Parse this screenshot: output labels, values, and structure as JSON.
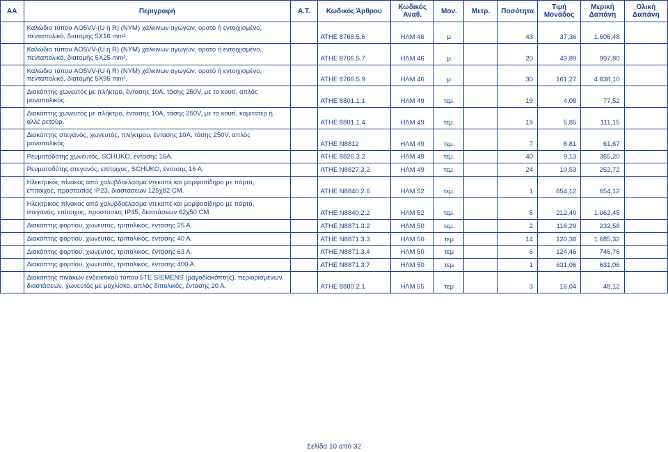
{
  "colors": {
    "text": "#1a3e8c",
    "border": "#1a3e8c",
    "background": "#ffffff"
  },
  "column_widths_pct": [
    3.5,
    40,
    4,
    11,
    6.5,
    4.5,
    5,
    6,
    6.5,
    6.5,
    6.5
  ],
  "headers": [
    "ΑΑ",
    "Περιγραφή",
    "Α.Τ.",
    "Κωδικός Άρθρου",
    "Κωδικός Αναθ.",
    "Μον.",
    "Μετρ.",
    "Ποσότητα",
    "Τιμή Μονάδος",
    "Μερική Δαπάνη",
    "Ολική Δαπάνη"
  ],
  "rows": [
    {
      "desc": "Καλώδιο τύπου AO5VV-(U ή R) (NYM) χάλκινων αγωγών, ορατό ή εντοιχισμένο, πενταπολικό, διατομής 5Χ16 mm².",
      "code": "ΑΤΗΕ 8766.5.6",
      "anath": "ΗΛΜ 46",
      "mon": "μ",
      "qty": "43",
      "price": "37,36",
      "partial": "1.606,48",
      "total": ""
    },
    {
      "desc": "Καλώδιο τύπου AO5VV-(U ή R) (NYM) χάλκινων αγωγών, ορατό ή εντοιχισμένο, πενταπολικό, διατομής 5Χ25 mm².",
      "code": "ΑΤΗΕ 8766.5.7",
      "anath": "ΗΛΜ 46",
      "mon": "μ",
      "qty": "20",
      "price": "49,89",
      "partial": "997,80",
      "total": ""
    },
    {
      "desc": "Καλώδιο τύπου AO5VV-(U ή R) (NYM) χάλκινων αγωγών, ορατό ή εντοιχισμένο, πενταπολικό, διατομής 5Χ95 mm².",
      "code": "ΑΤΗΕ 8766.5.9",
      "anath": "ΗΛΜ 46",
      "mon": "μ",
      "qty": "30",
      "price": "161,27",
      "partial": "4.838,10",
      "total": ""
    },
    {
      "desc": "Διακόπτης χωνευτός με πλήκτρο, έντασης 10Α, τάσης 250V, με το κουτί, απλός μονοπολικός.",
      "code": "ΑΤΗΕ 8801.1.1",
      "anath": "ΗΛΜ 49",
      "mon": "τεμ.",
      "qty": "19",
      "price": "4,08",
      "partial": "77,52",
      "total": ""
    },
    {
      "desc": "Διακόπτης χωνευτός με πλήκτρο, έντασης 10Α, τάσης 250V, με το κουτί, κομιτατέρ ή αλλέ ρετούρ.",
      "code": "ΑΤΗΕ 8801.1.4",
      "anath": "ΗΛΜ 49",
      "mon": "τεμ.",
      "qty": "19",
      "price": "5,85",
      "partial": "111,15",
      "total": ""
    },
    {
      "desc": "Διακόπτης στεγανός, χωνευτός, πλήκτρου, έντασης 10Α, τάσης 250V, απλός μονοπολικός.",
      "code": "ΑΤΗΕ Ν8812",
      "anath": "ΗΛΜ 49",
      "mon": "τεμ.",
      "qty": "7",
      "price": "8,81",
      "partial": "61,67",
      "total": ""
    },
    {
      "desc": "Ρευματοδότης χωνευτός, SCHUKO, έντασης 16Α.",
      "code": "ΑΤΗΕ 8826.3.2",
      "anath": "ΗΛΜ 49",
      "mon": "τεμ.",
      "qty": "40",
      "price": "9,13",
      "partial": "365,20",
      "total": ""
    },
    {
      "desc": "Ρευματοδότης στεγανός, επίτοιχος, SCHUKO, έντασης 16 Α.",
      "code": "ΑΤΗΕ Ν8827.3.2",
      "anath": "ΗΛΜ 49",
      "mon": "τεμ.",
      "qty": "24",
      "price": "10,53",
      "partial": "252,72",
      "total": ""
    },
    {
      "desc": "Ηλεκτρικός πίνακας από χαλυβδοέλασμα ντεκαπέ και μορφοσίδηρο με πόρτα, επίτοιχος, προστασίας ΙΡ23, διαστάσεων 125χ82 CM.",
      "code": "ΑΤΗΕ Ν8840.2.6",
      "anath": "ΗΛΜ 52",
      "mon": "τεμ.",
      "qty": "1",
      "price": "654,12",
      "partial": "654,12",
      "total": ""
    },
    {
      "desc": "Ηλεκτρικός πίνακας από χαλυβδοέλασμα ντεκαπέ και μορφοσίδηρο με πόρτα, στεγανός, επίτοιχος, προστασίας ΙΡ45, διαστάσεων 62χ50 CM.",
      "code": "ΑΤΗΕ Ν8840.2.2",
      "anath": "ΗΛΜ 52",
      "mon": "τεμ.",
      "qty": "5",
      "price": "212,49",
      "partial": "1.062,45",
      "total": ""
    },
    {
      "desc": "Διακόπτης φορτίου, χωνευτός, τριπολικός, έντασης 25 Α.",
      "code": "ΑΤΗΕ Ν8871.3.2",
      "anath": "ΗΛΜ 50",
      "mon": "τεμ.",
      "qty": "2",
      "price": "116,29",
      "partial": "232,58",
      "total": ""
    },
    {
      "desc": "Διακόπτης φορτίου, χωνευτός, τριπολικός, έντασης 40 Α.",
      "code": "ΑΤΗΕ Ν8871.3.3",
      "anath": "ΗΛΜ 50",
      "mon": "τεμ",
      "qty": "14",
      "price": "120,38",
      "partial": "1.685,32",
      "total": ""
    },
    {
      "desc": "Διακόπτης φορτίου, χωνευτός, τριπολικός, έντασης 63 Α.",
      "code": "ΑΤΗΕ Ν8871.3.4",
      "anath": "ΗΛΜ 50",
      "mon": "τεμ",
      "qty": "6",
      "price": "124,46",
      "partial": "746,76",
      "total": ""
    },
    {
      "desc": "Διακόπτης φορτίου, χωνευτός, τριπολικός, έντασης 400 Α.",
      "code": "ΑΤΗΕ Ν8871.3.7",
      "anath": "ΗΛΜ 50",
      "mon": "τεμ",
      "qty": "1",
      "price": "631,06",
      "partial": "631,06",
      "total": ""
    },
    {
      "desc": "Διακόπτης πινάκων ενδεικτικού τύπου 5ΤΕ SIEMENS (ραγοδιακόπτης), περιορισμένων διαστάσεων, χωνευτός με μοχλίσκο, απλός διπολικός, έντασης 20 Α.",
      "code": "ΑΤΗΕ 8880.2.1",
      "anath": "ΗΛΜ 55",
      "mon": "τεμ",
      "qty": "3",
      "price": "16,04",
      "partial": "48,12",
      "total": ""
    }
  ],
  "footer": "Σελίδα 10 από 32"
}
